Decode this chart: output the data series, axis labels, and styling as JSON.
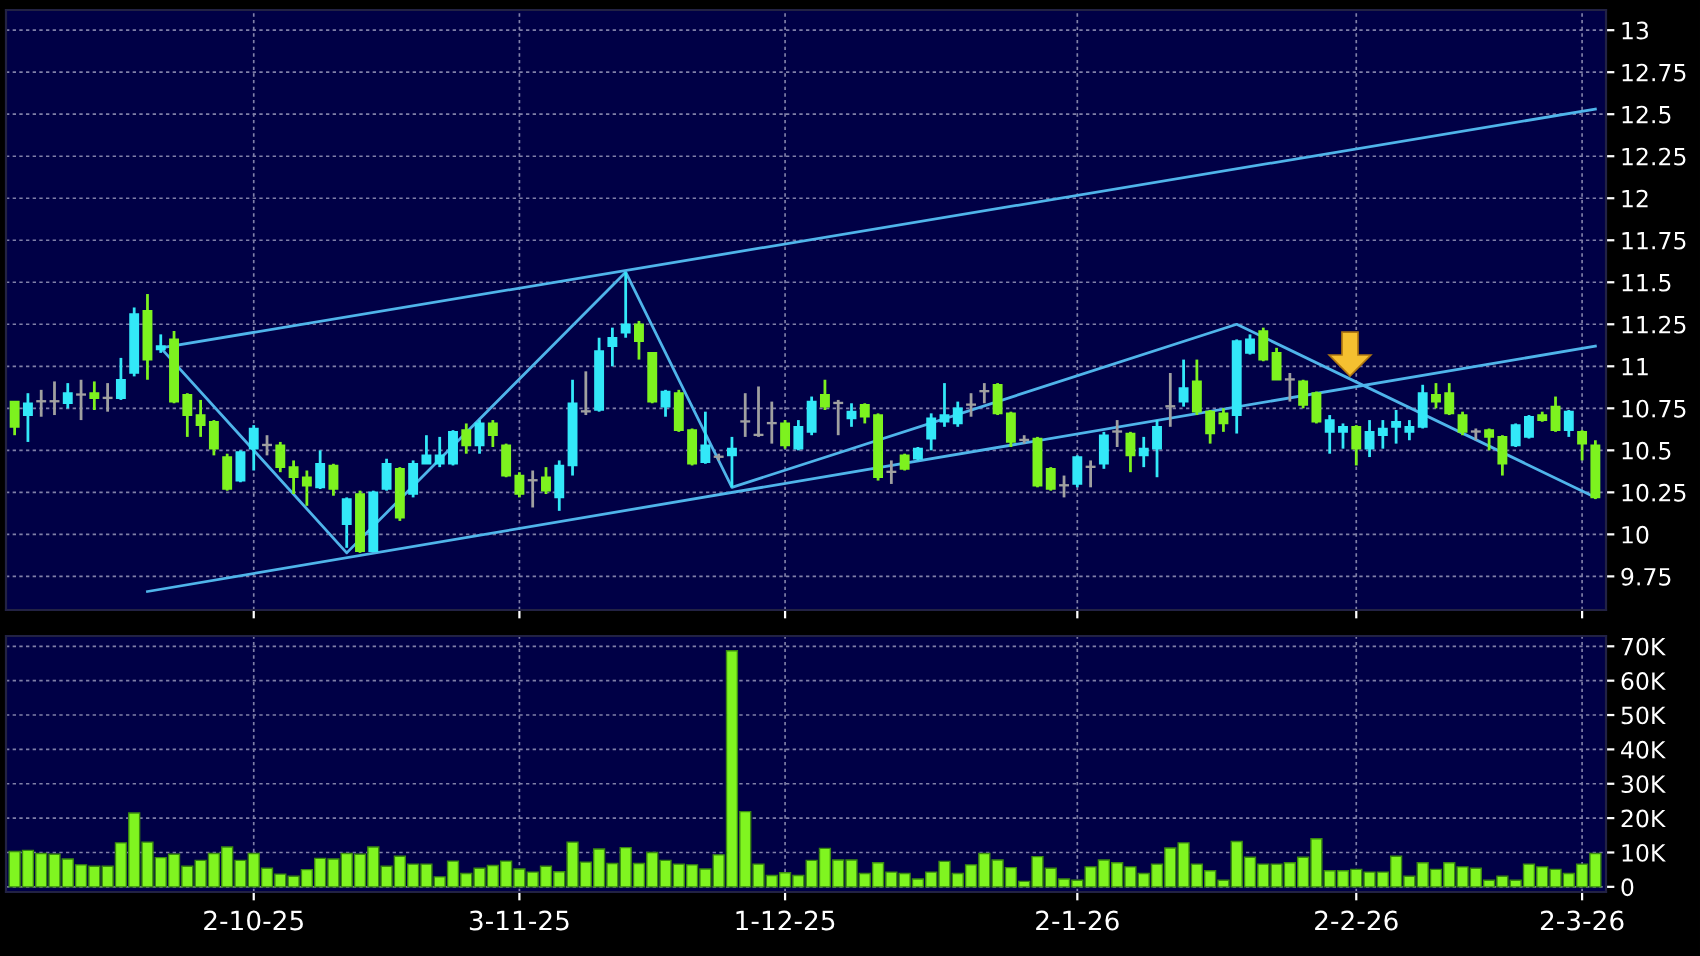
{
  "chart_data": [
    {
      "type": "candlestick",
      "categories": [
        null,
        null,
        null,
        null,
        null,
        null,
        null,
        null,
        null,
        null,
        null,
        null,
        null,
        null,
        null,
        null,
        null,
        null,
        null,
        null,
        null,
        null,
        null,
        null,
        null,
        null,
        null,
        null,
        null,
        null,
        null,
        null,
        null,
        null,
        null,
        null,
        null,
        null,
        null,
        null,
        null,
        null,
        null,
        null,
        null,
        null,
        null,
        null,
        null,
        null,
        null,
        null,
        null,
        null,
        null,
        null,
        null,
        null,
        null,
        null,
        null,
        null,
        null,
        null,
        null,
        null,
        null,
        null,
        null,
        null,
        null,
        null,
        null,
        null,
        null,
        null,
        null,
        null,
        null,
        null,
        null,
        null,
        null,
        null,
        null,
        null,
        null,
        null,
        null,
        null,
        null,
        null,
        null,
        null,
        null,
        null,
        null,
        null,
        null,
        null,
        null,
        null,
        null,
        null,
        null,
        null,
        null,
        null,
        null,
        null,
        null,
        null,
        null,
        null,
        null,
        null,
        null,
        null,
        null,
        null
      ],
      "ohlc": [
        [
          10.79,
          10.79,
          10.59,
          10.64
        ],
        [
          10.71,
          10.84,
          10.55,
          10.78
        ],
        [
          10.79,
          10.86,
          10.7,
          10.79
        ],
        [
          10.79,
          10.91,
          10.71,
          10.79
        ],
        [
          10.78,
          10.9,
          10.75,
          10.84
        ],
        [
          10.83,
          10.92,
          10.68,
          10.83
        ],
        [
          10.84,
          10.91,
          10.74,
          10.81
        ],
        [
          10.81,
          10.9,
          10.73,
          10.81
        ],
        [
          10.81,
          11.05,
          10.8,
          10.92
        ],
        [
          10.96,
          11.35,
          10.94,
          11.31
        ],
        [
          11.33,
          11.43,
          10.92,
          11.04
        ],
        [
          11.1,
          11.19,
          11.08,
          11.12
        ],
        [
          11.16,
          11.21,
          10.78,
          10.79
        ],
        [
          10.83,
          10.84,
          10.58,
          10.71
        ],
        [
          10.71,
          10.8,
          10.58,
          10.65
        ],
        [
          10.67,
          10.68,
          10.47,
          10.51
        ],
        [
          10.46,
          10.48,
          10.26,
          10.27
        ],
        [
          10.32,
          10.5,
          10.31,
          10.49
        ],
        [
          10.51,
          10.65,
          10.38,
          10.63
        ],
        [
          10.53,
          10.59,
          10.47,
          10.53
        ],
        [
          10.53,
          10.55,
          10.37,
          10.4
        ],
        [
          10.4,
          10.44,
          10.24,
          10.34
        ],
        [
          10.34,
          10.38,
          10.17,
          10.29
        ],
        [
          10.28,
          10.5,
          10.27,
          10.42
        ],
        [
          10.41,
          10.42,
          10.23,
          10.27
        ],
        [
          10.06,
          10.22,
          9.92,
          10.21
        ],
        [
          10.24,
          10.26,
          9.89,
          9.9
        ],
        [
          9.9,
          10.26,
          9.9,
          10.25
        ],
        [
          10.27,
          10.45,
          10.26,
          10.42
        ],
        [
          10.39,
          10.4,
          10.08,
          10.1
        ],
        [
          10.24,
          10.44,
          10.22,
          10.42
        ],
        [
          10.42,
          10.59,
          10.42,
          10.47
        ],
        [
          10.42,
          10.58,
          10.4,
          10.47
        ],
        [
          10.42,
          10.62,
          10.41,
          10.61
        ],
        [
          10.62,
          10.66,
          10.48,
          10.53
        ],
        [
          10.53,
          10.68,
          10.48,
          10.66
        ],
        [
          10.66,
          10.68,
          10.52,
          10.59
        ],
        [
          10.53,
          10.54,
          10.34,
          10.35
        ],
        [
          10.35,
          10.37,
          10.22,
          10.24
        ],
        [
          10.32,
          10.38,
          10.16,
          10.32
        ],
        [
          10.34,
          10.4,
          10.24,
          10.26
        ],
        [
          10.22,
          10.44,
          10.14,
          10.41
        ],
        [
          10.41,
          10.92,
          10.35,
          10.78
        ],
        [
          10.73,
          10.97,
          10.71,
          10.73
        ],
        [
          10.74,
          11.17,
          10.73,
          11.09
        ],
        [
          11.12,
          11.23,
          11.0,
          11.17
        ],
        [
          11.2,
          11.56,
          11.17,
          11.25
        ],
        [
          11.25,
          11.27,
          11.04,
          11.15
        ],
        [
          11.08,
          11.08,
          10.78,
          10.79
        ],
        [
          10.76,
          10.86,
          10.7,
          10.85
        ],
        [
          10.84,
          10.86,
          10.61,
          10.62
        ],
        [
          10.62,
          10.63,
          10.41,
          10.42
        ],
        [
          10.43,
          10.73,
          10.42,
          10.53
        ],
        [
          10.46,
          10.48,
          10.44,
          10.46
        ],
        [
          10.47,
          10.58,
          10.28,
          10.51
        ],
        [
          10.67,
          10.84,
          10.58,
          10.67
        ],
        [
          10.59,
          10.88,
          10.58,
          10.59
        ],
        [
          10.66,
          10.79,
          10.54,
          10.66
        ],
        [
          10.66,
          10.68,
          10.51,
          10.53
        ],
        [
          10.51,
          10.68,
          10.5,
          10.64
        ],
        [
          10.61,
          10.82,
          10.59,
          10.79
        ],
        [
          10.83,
          10.92,
          10.74,
          10.76
        ],
        [
          10.78,
          10.8,
          10.59,
          10.78
        ],
        [
          10.69,
          10.78,
          10.64,
          10.73
        ],
        [
          10.77,
          10.78,
          10.66,
          10.7
        ],
        [
          10.71,
          10.72,
          10.32,
          10.34
        ],
        [
          10.37,
          10.44,
          10.3,
          10.37
        ],
        [
          10.47,
          10.48,
          10.38,
          10.39
        ],
        [
          10.45,
          10.52,
          10.44,
          10.51
        ],
        [
          10.57,
          10.72,
          10.5,
          10.69
        ],
        [
          10.67,
          10.9,
          10.64,
          10.71
        ],
        [
          10.66,
          10.79,
          10.64,
          10.75
        ],
        [
          10.77,
          10.84,
          10.7,
          10.77
        ],
        [
          10.85,
          10.9,
          10.78,
          10.85
        ],
        [
          10.89,
          10.9,
          10.71,
          10.72
        ],
        [
          10.72,
          10.73,
          10.52,
          10.55
        ],
        [
          10.56,
          10.59,
          10.54,
          10.56
        ],
        [
          10.57,
          10.58,
          10.28,
          10.29
        ],
        [
          10.39,
          10.4,
          10.26,
          10.27
        ],
        [
          10.29,
          10.35,
          10.22,
          10.29
        ],
        [
          10.3,
          10.47,
          10.28,
          10.46
        ],
        [
          10.4,
          10.44,
          10.28,
          10.4
        ],
        [
          10.42,
          10.61,
          10.39,
          10.59
        ],
        [
          10.61,
          10.68,
          10.52,
          10.61
        ],
        [
          10.6,
          10.61,
          10.37,
          10.47
        ],
        [
          10.47,
          10.58,
          10.4,
          10.51
        ],
        [
          10.51,
          10.68,
          10.34,
          10.64
        ],
        [
          10.76,
          10.96,
          10.64,
          10.76
        ],
        [
          10.79,
          11.04,
          10.76,
          10.87
        ],
        [
          10.91,
          11.04,
          10.71,
          10.73
        ],
        [
          10.73,
          10.74,
          10.54,
          10.6
        ],
        [
          10.72,
          10.75,
          10.61,
          10.66
        ],
        [
          10.71,
          11.16,
          10.6,
          11.15
        ],
        [
          11.08,
          11.19,
          11.07,
          11.16
        ],
        [
          11.21,
          11.23,
          11.03,
          11.04
        ],
        [
          11.08,
          11.11,
          10.92,
          10.92
        ],
        [
          10.92,
          10.96,
          10.79,
          10.92
        ],
        [
          10.91,
          10.92,
          10.75,
          10.77
        ],
        [
          10.84,
          10.85,
          10.66,
          10.67
        ],
        [
          10.61,
          10.71,
          10.48,
          10.68
        ],
        [
          10.61,
          10.66,
          10.51,
          10.64
        ],
        [
          10.64,
          10.65,
          10.41,
          10.51
        ],
        [
          10.51,
          10.68,
          10.46,
          10.61
        ],
        [
          10.59,
          10.68,
          10.51,
          10.63
        ],
        [
          10.64,
          10.74,
          10.54,
          10.67
        ],
        [
          10.61,
          10.68,
          10.56,
          10.64
        ],
        [
          10.64,
          10.89,
          10.63,
          10.84
        ],
        [
          10.83,
          10.9,
          10.75,
          10.79
        ],
        [
          10.84,
          10.9,
          10.71,
          10.72
        ],
        [
          10.71,
          10.73,
          10.59,
          10.61
        ],
        [
          10.61,
          10.63,
          10.56,
          10.61
        ],
        [
          10.62,
          10.63,
          10.5,
          10.58
        ],
        [
          10.58,
          10.59,
          10.35,
          10.42
        ],
        [
          10.53,
          10.66,
          10.52,
          10.65
        ],
        [
          10.58,
          10.71,
          10.57,
          10.7
        ],
        [
          10.71,
          10.73,
          10.67,
          10.68
        ],
        [
          10.76,
          10.82,
          10.61,
          10.62
        ],
        [
          10.62,
          10.74,
          10.58,
          10.73
        ],
        [
          10.61,
          10.62,
          10.44,
          10.54
        ],
        [
          10.53,
          10.56,
          10.21,
          10.22
        ]
      ],
      "colors": [
        "#7df21f",
        "#33e8f8",
        "#a0a0a0",
        "#a0a0a0",
        "#33e8f8",
        "#a0a0a0",
        "#7df21f",
        "#a0a0a0",
        "#33e8f8",
        "#33e8f8",
        "#7df21f",
        "#33e8f8",
        "#7df21f",
        "#7df21f",
        "#7df21f",
        "#7df21f",
        "#7df21f",
        "#33e8f8",
        "#33e8f8",
        "#a0a0a0",
        "#7df21f",
        "#7df21f",
        "#7df21f",
        "#33e8f8",
        "#7df21f",
        "#33e8f8",
        "#7df21f",
        "#33e8f8",
        "#33e8f8",
        "#7df21f",
        "#33e8f8",
        "#33e8f8",
        "#33e8f8",
        "#33e8f8",
        "#7df21f",
        "#33e8f8",
        "#7df21f",
        "#7df21f",
        "#7df21f",
        "#a0a0a0",
        "#7df21f",
        "#33e8f8",
        "#33e8f8",
        "#a0a0a0",
        "#33e8f8",
        "#33e8f8",
        "#33e8f8",
        "#7df21f",
        "#7df21f",
        "#33e8f8",
        "#7df21f",
        "#7df21f",
        "#33e8f8",
        "#a0a0a0",
        "#33e8f8",
        "#a0a0a0",
        "#a0a0a0",
        "#a0a0a0",
        "#7df21f",
        "#33e8f8",
        "#33e8f8",
        "#7df21f",
        "#a0a0a0",
        "#33e8f8",
        "#7df21f",
        "#7df21f",
        "#a0a0a0",
        "#7df21f",
        "#33e8f8",
        "#33e8f8",
        "#33e8f8",
        "#33e8f8",
        "#a0a0a0",
        "#a0a0a0",
        "#7df21f",
        "#7df21f",
        "#a0a0a0",
        "#7df21f",
        "#7df21f",
        "#a0a0a0",
        "#33e8f8",
        "#a0a0a0",
        "#33e8f8",
        "#a0a0a0",
        "#7df21f",
        "#33e8f8",
        "#33e8f8",
        "#a0a0a0",
        "#33e8f8",
        "#7df21f",
        "#7df21f",
        "#7df21f",
        "#33e8f8",
        "#33e8f8",
        "#7df21f",
        "#7df21f",
        "#a0a0a0",
        "#7df21f",
        "#7df21f",
        "#33e8f8",
        "#33e8f8",
        "#7df21f",
        "#33e8f8",
        "#33e8f8",
        "#33e8f8",
        "#33e8f8",
        "#33e8f8",
        "#7df21f",
        "#7df21f",
        "#7df21f",
        "#a0a0a0",
        "#7df21f",
        "#7df21f",
        "#33e8f8",
        "#33e8f8",
        "#7df21f",
        "#7df21f",
        "#33e8f8",
        "#7df21f",
        "#7df21f"
      ],
      "series": [
        {
          "type": "line",
          "color": "#4fb4ea",
          "values": [
            null,
            null,
            null,
            null,
            null,
            null,
            null,
            null,
            null,
            null,
            null,
            11.11,
            null,
            null,
            null,
            null,
            null,
            null,
            null,
            null,
            null,
            null,
            null,
            null,
            null,
            null,
            null,
            null,
            null,
            null,
            null,
            null,
            null,
            null,
            null,
            null,
            null,
            null,
            null,
            null,
            null,
            null,
            null,
            null,
            null,
            null,
            null,
            null,
            null,
            null,
            null,
            null,
            null,
            null,
            null,
            null,
            null,
            null,
            null,
            null,
            null,
            null,
            null,
            null,
            null,
            null,
            null,
            null,
            null,
            null,
            null,
            null,
            null,
            null,
            null,
            null,
            null,
            null,
            null,
            null,
            null,
            null,
            null,
            null,
            null,
            null,
            null,
            null,
            null,
            null,
            null,
            null,
            null,
            null,
            null,
            null,
            null,
            null,
            null,
            null,
            null,
            null,
            null,
            null,
            null,
            null,
            null,
            null,
            null,
            null,
            null,
            null,
            null,
            null,
            null,
            null,
            null,
            null,
            null,
            12.53
          ]
        },
        {
          "type": "line",
          "color": "#4fb4ea",
          "values": [
            null,
            null,
            null,
            null,
            null,
            null,
            null,
            null,
            null,
            null,
            9.66,
            null,
            null,
            null,
            null,
            null,
            null,
            null,
            null,
            null,
            null,
            null,
            null,
            null,
            null,
            null,
            null,
            null,
            null,
            null,
            null,
            null,
            null,
            null,
            null,
            null,
            null,
            null,
            null,
            null,
            null,
            null,
            null,
            null,
            null,
            null,
            null,
            null,
            null,
            null,
            null,
            null,
            null,
            null,
            null,
            null,
            null,
            null,
            null,
            null,
            null,
            null,
            null,
            null,
            null,
            null,
            null,
            null,
            null,
            null,
            null,
            null,
            null,
            null,
            null,
            null,
            null,
            null,
            null,
            null,
            null,
            null,
            null,
            null,
            null,
            null,
            null,
            null,
            null,
            null,
            null,
            null,
            null,
            null,
            null,
            null,
            null,
            null,
            null,
            null,
            null,
            null,
            null,
            null,
            null,
            null,
            null,
            null,
            null,
            null,
            null,
            null,
            null,
            null,
            null,
            null,
            null,
            null,
            null,
            11.12
          ]
        },
        {
          "type": "line",
          "color": "#4fb4ea",
          "values": [
            null,
            null,
            null,
            null,
            null,
            null,
            null,
            null,
            null,
            null,
            null,
            11.11,
            null,
            null,
            null,
            null,
            null,
            null,
            null,
            null,
            null,
            null,
            null,
            null,
            null,
            9.89,
            null,
            null,
            null,
            null,
            null,
            null,
            null,
            null,
            null,
            null,
            null,
            null,
            null,
            null,
            null,
            null,
            null,
            null,
            null,
            null,
            11.56,
            null,
            null,
            null,
            null,
            null,
            null,
            null,
            10.28,
            null,
            null,
            null,
            null,
            null,
            null,
            null,
            null,
            null,
            null,
            null,
            null,
            null,
            null,
            null,
            null,
            null,
            null,
            null,
            null,
            null,
            null,
            null,
            null,
            null,
            null,
            null,
            null,
            null,
            null,
            null,
            null,
            null,
            null,
            null,
            null,
            null,
            11.25,
            null,
            null,
            null,
            null,
            null,
            null,
            null,
            null,
            null,
            null,
            null,
            null,
            null,
            null,
            null,
            null,
            null,
            null,
            null,
            null,
            null,
            null,
            null,
            null,
            null,
            null,
            10.22
          ]
        }
      ],
      "ylim": [
        9.55,
        13.12
      ],
      "yticks": [
        9.75,
        10,
        10.25,
        10.5,
        10.75,
        11,
        11.25,
        11.5,
        11.75,
        12,
        12.25,
        12.5,
        12.75,
        13
      ],
      "grid": true,
      "tick_labels": "y"
    },
    {
      "type": "bar",
      "categories": [
        null,
        null,
        null,
        null,
        null,
        null,
        null,
        null,
        null,
        null,
        null,
        null,
        null,
        null,
        null,
        null,
        null,
        null,
        "2-10-25",
        null,
        null,
        null,
        null,
        null,
        null,
        null,
        null,
        null,
        null,
        null,
        null,
        null,
        null,
        null,
        null,
        null,
        null,
        null,
        "3-11-25",
        null,
        null,
        null,
        null,
        null,
        null,
        null,
        null,
        null,
        null,
        null,
        null,
        null,
        null,
        null,
        null,
        null,
        null,
        null,
        "1-12-25",
        null,
        null,
        null,
        null,
        null,
        null,
        null,
        null,
        null,
        null,
        null,
        null,
        null,
        null,
        null,
        null,
        null,
        null,
        null,
        null,
        null,
        "2-1-26",
        null,
        null,
        null,
        null,
        null,
        null,
        null,
        null,
        null,
        null,
        null,
        null,
        null,
        null,
        null,
        null,
        null,
        null,
        null,
        null,
        "2-2-26",
        null,
        null,
        null,
        null,
        null,
        null,
        null,
        null,
        null,
        null,
        null,
        null,
        null,
        null,
        null,
        null,
        "2-3-26",
        null
      ],
      "values": [
        10.3,
        10.6,
        9.7,
        9.5,
        8.1,
        6.4,
        6.0,
        6.0,
        12.8,
        21.5,
        13.0,
        8.5,
        9.5,
        6.0,
        7.7,
        9.7,
        11.6,
        7.7,
        9.7,
        5.4,
        3.7,
        3.1,
        5.0,
        8.3,
        8.1,
        9.7,
        9.5,
        11.6,
        6.0,
        8.9,
        6.6,
        6.6,
        2.9,
        7.5,
        3.9,
        5.4,
        6.2,
        7.5,
        5.2,
        4.3,
        6.0,
        4.4,
        13.0,
        7.2,
        11.0,
        6.8,
        11.4,
        6.8,
        10.0,
        7.7,
        6.6,
        6.4,
        5.2,
        9.3,
        68.7,
        21.9,
        6.6,
        3.3,
        4.1,
        3.3,
        7.7,
        11.2,
        7.8,
        7.8,
        3.9,
        7.0,
        4.3,
        3.9,
        2.3,
        4.3,
        7.4,
        3.9,
        6.4,
        9.7,
        7.8,
        5.6,
        1.6,
        8.8,
        5.4,
        2.3,
        1.9,
        5.8,
        7.8,
        7.0,
        5.8,
        3.9,
        6.6,
        11.3,
        12.8,
        6.6,
        4.7,
        1.9,
        13.2,
        8.6,
        6.6,
        6.6,
        7.0,
        8.6,
        14.0,
        4.7,
        4.7,
        5.1,
        4.3,
        4.3,
        8.9,
        3.1,
        7.0,
        5.1,
        7.0,
        5.8,
        5.4,
        1.9,
        3.1,
        1.9,
        6.6,
        5.8,
        5.1,
        3.9,
        6.6,
        9.7
      ],
      "color": "#80f520",
      "ylim": [
        -1.5,
        73
      ],
      "yticks": [
        0,
        {
          "value": 10,
          "label": "10K"
        },
        {
          "value": 20,
          "label": "20K"
        },
        {
          "value": 30,
          "label": "30K"
        },
        {
          "value": 40,
          "label": "40K"
        },
        {
          "value": 50,
          "label": "50K"
        },
        {
          "value": 60,
          "label": "60K"
        },
        {
          "value": 70,
          "label": "70K"
        }
      ],
      "grid": true
    }
  ]
}
